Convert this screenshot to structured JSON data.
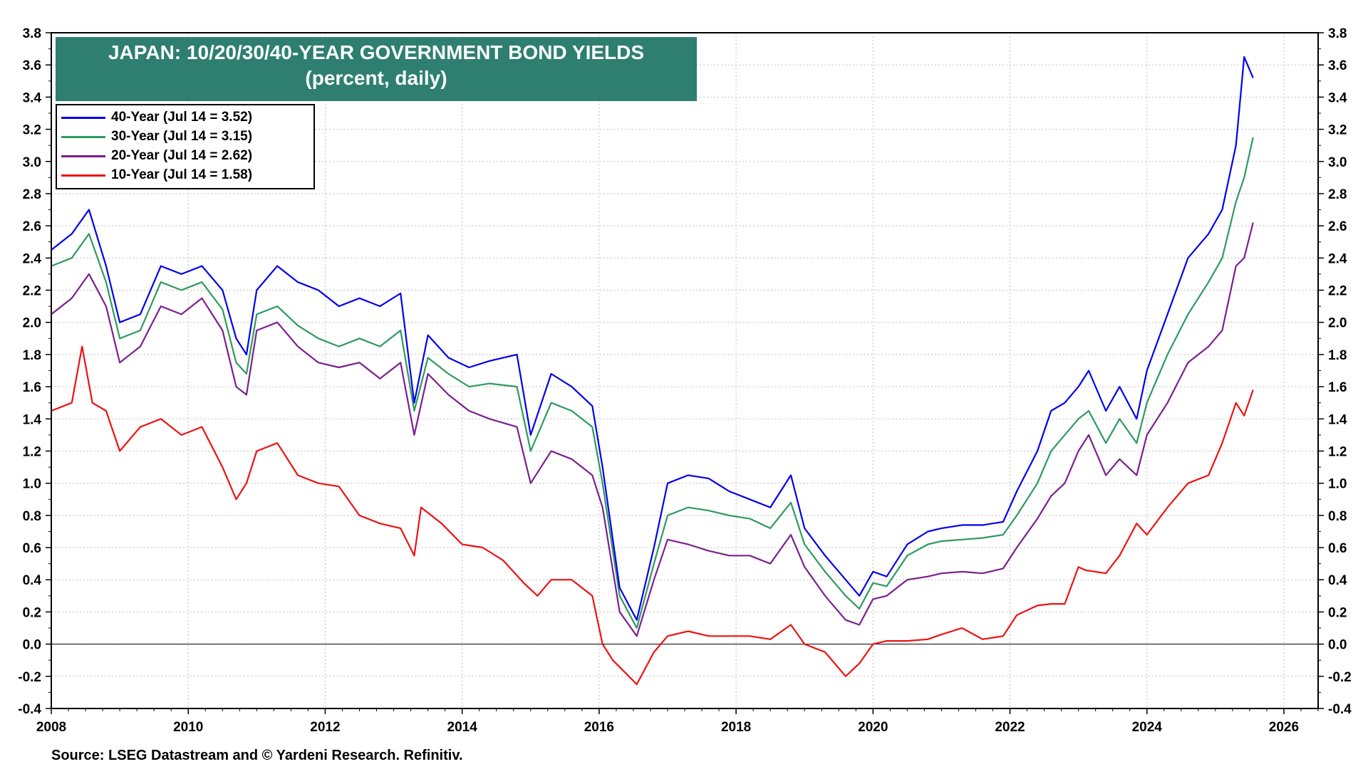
{
  "chart_data": {
    "type": "line",
    "title": "JAPAN: 10/20/30/40-YEAR GOVERNMENT BOND YIELDS",
    "subtitle": "(percent, daily)",
    "source": "Source: LSEG Datastream and © Yardeni Research. Refinitiv.",
    "xlim": [
      2008,
      2026.5
    ],
    "ylim": [
      -0.4,
      3.8
    ],
    "x_ticks": [
      "2008",
      "2010",
      "2012",
      "2014",
      "2016",
      "2018",
      "2020",
      "2022",
      "2024",
      "2026"
    ],
    "y_ticks": [
      "3.8",
      "3.6",
      "3.4",
      "3.2",
      "3.0",
      "2.8",
      "2.6",
      "2.4",
      "2.2",
      "2.0",
      "1.8",
      "1.6",
      "1.4",
      "1.2",
      "1.0",
      "0.8",
      "0.6",
      "0.4",
      "0.2",
      "0.0",
      "-0.2",
      "-0.4"
    ],
    "grid": true,
    "legend_position": "top-left",
    "series": [
      {
        "name": "40-Year (Jul 14 = 3.52)",
        "color": "#0000ee",
        "x": [
          2008.0,
          2008.3,
          2008.55,
          2008.8,
          2009.0,
          2009.3,
          2009.6,
          2009.9,
          2010.2,
          2010.5,
          2010.7,
          2010.85,
          2011.0,
          2011.3,
          2011.6,
          2011.9,
          2012.2,
          2012.5,
          2012.8,
          2013.1,
          2013.3,
          2013.5,
          2013.8,
          2014.1,
          2014.4,
          2014.8,
          2015.0,
          2015.3,
          2015.6,
          2015.9,
          2016.05,
          2016.3,
          2016.55,
          2016.8,
          2017.0,
          2017.3,
          2017.6,
          2017.9,
          2018.2,
          2018.5,
          2018.8,
          2019.0,
          2019.3,
          2019.6,
          2019.8,
          2020.0,
          2020.2,
          2020.5,
          2020.8,
          2021.0,
          2021.3,
          2021.6,
          2021.9,
          2022.1,
          2022.4,
          2022.6,
          2022.8,
          2023.0,
          2023.15,
          2023.4,
          2023.6,
          2023.85,
          2024.0,
          2024.3,
          2024.6,
          2024.9,
          2025.1,
          2025.3,
          2025.42,
          2025.55
        ],
        "values": [
          2.45,
          2.55,
          2.7,
          2.35,
          2.0,
          2.05,
          2.35,
          2.3,
          2.35,
          2.2,
          1.9,
          1.8,
          2.2,
          2.35,
          2.25,
          2.2,
          2.1,
          2.15,
          2.1,
          2.18,
          1.5,
          1.92,
          1.78,
          1.72,
          1.76,
          1.8,
          1.3,
          1.68,
          1.6,
          1.48,
          1.1,
          0.35,
          0.15,
          0.6,
          1.0,
          1.05,
          1.03,
          0.95,
          0.9,
          0.85,
          1.05,
          0.72,
          0.55,
          0.4,
          0.3,
          0.45,
          0.42,
          0.62,
          0.7,
          0.72,
          0.74,
          0.74,
          0.76,
          0.95,
          1.2,
          1.45,
          1.5,
          1.6,
          1.7,
          1.45,
          1.6,
          1.4,
          1.7,
          2.05,
          2.4,
          2.55,
          2.7,
          3.1,
          3.65,
          3.52
        ]
      },
      {
        "name": "30-Year (Jul 14 = 3.15)",
        "color": "#2e9a5e",
        "x": [
          2008.0,
          2008.3,
          2008.55,
          2008.8,
          2009.0,
          2009.3,
          2009.6,
          2009.9,
          2010.2,
          2010.5,
          2010.7,
          2010.85,
          2011.0,
          2011.3,
          2011.6,
          2011.9,
          2012.2,
          2012.5,
          2012.8,
          2013.1,
          2013.3,
          2013.5,
          2013.8,
          2014.1,
          2014.4,
          2014.8,
          2015.0,
          2015.3,
          2015.6,
          2015.9,
          2016.05,
          2016.3,
          2016.55,
          2016.8,
          2017.0,
          2017.3,
          2017.6,
          2017.9,
          2018.2,
          2018.5,
          2018.8,
          2019.0,
          2019.3,
          2019.6,
          2019.8,
          2020.0,
          2020.2,
          2020.5,
          2020.8,
          2021.0,
          2021.3,
          2021.6,
          2021.9,
          2022.1,
          2022.4,
          2022.6,
          2022.8,
          2023.0,
          2023.15,
          2023.4,
          2023.6,
          2023.85,
          2024.0,
          2024.3,
          2024.6,
          2024.9,
          2025.1,
          2025.3,
          2025.42,
          2025.55
        ],
        "values": [
          2.35,
          2.4,
          2.55,
          2.25,
          1.9,
          1.95,
          2.25,
          2.2,
          2.25,
          2.08,
          1.75,
          1.68,
          2.05,
          2.1,
          1.98,
          1.9,
          1.85,
          1.9,
          1.85,
          1.95,
          1.45,
          1.78,
          1.68,
          1.6,
          1.62,
          1.6,
          1.2,
          1.5,
          1.45,
          1.35,
          1.0,
          0.3,
          0.1,
          0.5,
          0.8,
          0.85,
          0.83,
          0.8,
          0.78,
          0.72,
          0.88,
          0.62,
          0.45,
          0.3,
          0.22,
          0.38,
          0.36,
          0.55,
          0.62,
          0.64,
          0.65,
          0.66,
          0.68,
          0.8,
          1.0,
          1.2,
          1.3,
          1.4,
          1.45,
          1.25,
          1.4,
          1.25,
          1.5,
          1.8,
          2.05,
          2.25,
          2.4,
          2.75,
          2.9,
          3.15
        ]
      },
      {
        "name": "20-Year (Jul 14 = 2.62)",
        "color": "#7b1f8e",
        "x": [
          2008.0,
          2008.3,
          2008.55,
          2008.8,
          2009.0,
          2009.3,
          2009.6,
          2009.9,
          2010.2,
          2010.5,
          2010.7,
          2010.85,
          2011.0,
          2011.3,
          2011.6,
          2011.9,
          2012.2,
          2012.5,
          2012.8,
          2013.1,
          2013.3,
          2013.5,
          2013.8,
          2014.1,
          2014.4,
          2014.8,
          2015.0,
          2015.3,
          2015.6,
          2015.9,
          2016.05,
          2016.3,
          2016.55,
          2016.8,
          2017.0,
          2017.3,
          2017.6,
          2017.9,
          2018.2,
          2018.5,
          2018.8,
          2019.0,
          2019.3,
          2019.6,
          2019.8,
          2020.0,
          2020.2,
          2020.5,
          2020.8,
          2021.0,
          2021.3,
          2021.6,
          2021.9,
          2022.1,
          2022.4,
          2022.6,
          2022.8,
          2023.0,
          2023.15,
          2023.4,
          2023.6,
          2023.85,
          2024.0,
          2024.3,
          2024.6,
          2024.9,
          2025.1,
          2025.3,
          2025.42,
          2025.55
        ],
        "values": [
          2.05,
          2.15,
          2.3,
          2.1,
          1.75,
          1.85,
          2.1,
          2.05,
          2.15,
          1.95,
          1.6,
          1.55,
          1.95,
          2.0,
          1.85,
          1.75,
          1.72,
          1.75,
          1.65,
          1.75,
          1.3,
          1.68,
          1.55,
          1.45,
          1.4,
          1.35,
          1.0,
          1.2,
          1.15,
          1.05,
          0.85,
          0.2,
          0.05,
          0.4,
          0.65,
          0.62,
          0.58,
          0.55,
          0.55,
          0.5,
          0.68,
          0.48,
          0.3,
          0.15,
          0.12,
          0.28,
          0.3,
          0.4,
          0.42,
          0.44,
          0.45,
          0.44,
          0.47,
          0.6,
          0.78,
          0.92,
          1.0,
          1.2,
          1.3,
          1.05,
          1.15,
          1.05,
          1.3,
          1.5,
          1.75,
          1.85,
          1.95,
          2.35,
          2.4,
          2.62
        ]
      },
      {
        "name": "10-Year (Jul 14 = 1.58)",
        "color": "#ee1111",
        "x": [
          2008.0,
          2008.3,
          2008.45,
          2008.6,
          2008.8,
          2009.0,
          2009.3,
          2009.6,
          2009.9,
          2010.2,
          2010.5,
          2010.7,
          2010.85,
          2011.0,
          2011.3,
          2011.6,
          2011.9,
          2012.2,
          2012.5,
          2012.8,
          2013.1,
          2013.3,
          2013.4,
          2013.7,
          2014.0,
          2014.3,
          2014.6,
          2014.9,
          2015.1,
          2015.3,
          2015.6,
          2015.9,
          2016.05,
          2016.2,
          2016.55,
          2016.8,
          2017.0,
          2017.3,
          2017.6,
          2017.9,
          2018.2,
          2018.5,
          2018.8,
          2019.0,
          2019.3,
          2019.6,
          2019.8,
          2020.0,
          2020.2,
          2020.5,
          2020.8,
          2021.0,
          2021.3,
          2021.6,
          2021.9,
          2022.1,
          2022.4,
          2022.6,
          2022.8,
          2023.0,
          2023.1,
          2023.4,
          2023.6,
          2023.85,
          2024.0,
          2024.3,
          2024.6,
          2024.9,
          2025.1,
          2025.3,
          2025.42,
          2025.55
        ],
        "values": [
          1.45,
          1.5,
          1.85,
          1.5,
          1.45,
          1.2,
          1.35,
          1.4,
          1.3,
          1.35,
          1.1,
          0.9,
          1.0,
          1.2,
          1.25,
          1.05,
          1.0,
          0.98,
          0.8,
          0.75,
          0.72,
          0.55,
          0.85,
          0.75,
          0.62,
          0.6,
          0.52,
          0.38,
          0.3,
          0.4,
          0.4,
          0.3,
          0.0,
          -0.1,
          -0.25,
          -0.05,
          0.05,
          0.08,
          0.05,
          0.05,
          0.05,
          0.03,
          0.12,
          0.0,
          -0.05,
          -0.2,
          -0.12,
          0.0,
          0.02,
          0.02,
          0.03,
          0.06,
          0.1,
          0.03,
          0.05,
          0.18,
          0.24,
          0.25,
          0.25,
          0.48,
          0.46,
          0.44,
          0.55,
          0.75,
          0.68,
          0.85,
          1.0,
          1.05,
          1.25,
          1.5,
          1.42,
          1.58
        ]
      }
    ]
  }
}
